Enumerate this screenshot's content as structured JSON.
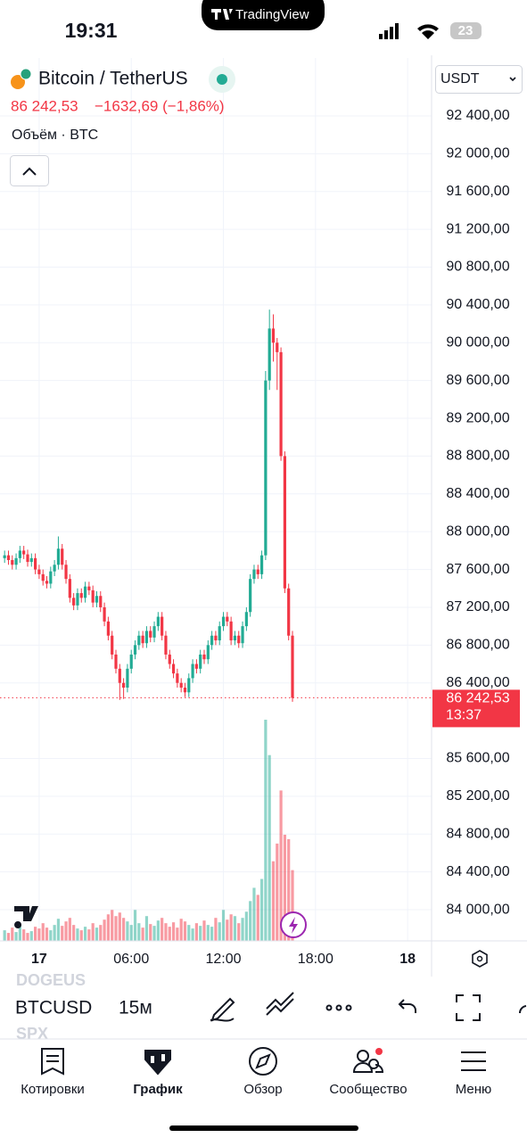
{
  "status_bar": {
    "time": "19:31",
    "app": "TradingView",
    "battery": "23"
  },
  "header": {
    "symbol": "Bitcoin / TetherUS",
    "price": "86 242,53",
    "change": "−1632,69 (−1,86%)",
    "volume_label": "Объём · BTC",
    "currency": "USDT"
  },
  "chart_data": {
    "type": "candlestick",
    "up_color": "#22ab94",
    "down_color": "#f23645",
    "x": [
      -2.25,
      -2,
      -1.75,
      -1.5,
      -1.25,
      -1,
      -0.75,
      -0.5,
      -0.25,
      0,
      0.25,
      0.5,
      0.75,
      1,
      1.25,
      1.5,
      1.75,
      2,
      2.25,
      2.5,
      2.75,
      3,
      3.25,
      3.5,
      3.75,
      4,
      4.25,
      4.5,
      4.75,
      5,
      5.25,
      5.5,
      5.75,
      6,
      6.25,
      6.5,
      6.75,
      7,
      7.25,
      7.5,
      7.75,
      8,
      8.25,
      8.5,
      8.75,
      9,
      9.25,
      9.5,
      9.75,
      10,
      10.25,
      10.5,
      10.75,
      11,
      11.25,
      11.5,
      11.75,
      12,
      12.25,
      12.5,
      12.75,
      13,
      13.25,
      13.5,
      13.75,
      14,
      14.25,
      14.5,
      14.75,
      15,
      15.25,
      15.5,
      15.75,
      16,
      16.25,
      16.5
    ],
    "open": [
      87720,
      87750,
      87700,
      87650,
      87720,
      87800,
      87760,
      87680,
      87720,
      87600,
      87550,
      87480,
      87450,
      87580,
      87650,
      87820,
      87650,
      87500,
      87300,
      87220,
      87350,
      87300,
      87420,
      87380,
      87250,
      87320,
      87200,
      87050,
      86900,
      86700,
      86550,
      86400,
      86350,
      86550,
      86700,
      86800,
      86900,
      86820,
      86950,
      86880,
      87000,
      87100,
      86900,
      86700,
      86600,
      86500,
      86400,
      86350,
      86300,
      86450,
      86600,
      86550,
      86700,
      86650,
      86800,
      86900,
      86850,
      87000,
      87100,
      87050,
      86850,
      86900,
      86820,
      87000,
      87150,
      87500,
      87600,
      87550,
      87750,
      89600,
      90150,
      90000,
      89900,
      88800,
      87400,
      86900
    ],
    "high": [
      87800,
      87800,
      87750,
      87770,
      87850,
      87850,
      87810,
      87770,
      87770,
      87650,
      87600,
      87530,
      87630,
      87700,
      87950,
      87870,
      87700,
      87550,
      87350,
      87400,
      87400,
      87470,
      87470,
      87430,
      87370,
      87370,
      87250,
      87100,
      86950,
      86750,
      86600,
      86450,
      86600,
      86750,
      86850,
      86950,
      86950,
      87000,
      87000,
      87050,
      87150,
      87150,
      86950,
      86750,
      86650,
      86550,
      86450,
      86400,
      86500,
      86650,
      86650,
      86750,
      86750,
      86850,
      86950,
      86950,
      87050,
      87150,
      87150,
      87100,
      86950,
      86950,
      87050,
      87200,
      87550,
      87650,
      87650,
      87800,
      89700,
      90350,
      90300,
      90050,
      89950,
      88850,
      87450,
      86950
    ],
    "low": [
      87670,
      87650,
      87600,
      87600,
      87670,
      87710,
      87630,
      87630,
      87550,
      87500,
      87430,
      87400,
      87400,
      87530,
      87600,
      87600,
      87450,
      87250,
      87170,
      87170,
      87250,
      87250,
      87330,
      87200,
      87200,
      87150,
      87000,
      86850,
      86650,
      86500,
      86220,
      86230,
      86300,
      86500,
      86650,
      86750,
      86770,
      86770,
      86830,
      86830,
      86950,
      86850,
      86650,
      86550,
      86450,
      86350,
      86300,
      86250,
      86250,
      86400,
      86500,
      86500,
      86600,
      86600,
      86750,
      86800,
      86800,
      86950,
      87000,
      86800,
      86800,
      86770,
      86770,
      86950,
      87100,
      87450,
      87500,
      87500,
      87700,
      89500,
      89800,
      89500,
      88750,
      87350,
      86850,
      86200
    ],
    "close": [
      87750,
      87700,
      87650,
      87720,
      87800,
      87760,
      87680,
      87720,
      87600,
      87550,
      87480,
      87450,
      87580,
      87650,
      87820,
      87650,
      87500,
      87300,
      87220,
      87350,
      87300,
      87420,
      87380,
      87250,
      87320,
      87200,
      87050,
      86900,
      86700,
      86550,
      86400,
      86350,
      86550,
      86700,
      86800,
      86900,
      86820,
      86950,
      86880,
      87000,
      87100,
      86900,
      86700,
      86600,
      86500,
      86400,
      86350,
      86300,
      86450,
      86600,
      86550,
      86700,
      86650,
      86800,
      86900,
      86850,
      87000,
      87100,
      87050,
      86850,
      86900,
      86820,
      87000,
      87150,
      87500,
      87600,
      87550,
      87750,
      89600,
      90150,
      90000,
      89900,
      88800,
      87400,
      86900,
      86242.53
    ],
    "volume": [
      120,
      90,
      150,
      100,
      180,
      130,
      90,
      110,
      160,
      140,
      200,
      150,
      120,
      180,
      250,
      170,
      220,
      260,
      180,
      140,
      120,
      160,
      130,
      200,
      150,
      180,
      240,
      300,
      350,
      280,
      320,
      260,
      220,
      180,
      350,
      200,
      150,
      280,
      190,
      170,
      230,
      260,
      200,
      160,
      210,
      150,
      250,
      220,
      180,
      140,
      200,
      170,
      230,
      180,
      160,
      260,
      210,
      350,
      240,
      300,
      280,
      200,
      260,
      330,
      450,
      600,
      520,
      700,
      2500,
      2100,
      900,
      1100,
      1700,
      1200,
      1150,
      800
    ],
    "xlim": [
      -2.55,
      25.56
    ],
    "xticks": [
      {
        "value": 0,
        "label": "17"
      },
      {
        "value": 6,
        "label": "06:00"
      },
      {
        "value": 12,
        "label": "12:00"
      },
      {
        "value": 18,
        "label": "18:00"
      },
      {
        "value": 24,
        "label": "18"
      }
    ],
    "ylim": [
      83670,
      93013
    ],
    "yticks": [
      {
        "value": 92400,
        "label": "92 400,00"
      },
      {
        "value": 92000,
        "label": "92 000,00"
      },
      {
        "value": 91600,
        "label": "91 600,00"
      },
      {
        "value": 91200,
        "label": "91 200,00"
      },
      {
        "value": 90800,
        "label": "90 800,00"
      },
      {
        "value": 90400,
        "label": "90 400,00"
      },
      {
        "value": 90000,
        "label": "90 000,00"
      },
      {
        "value": 89600,
        "label": "89 600,00"
      },
      {
        "value": 89200,
        "label": "89 200,00"
      },
      {
        "value": 88800,
        "label": "88 800,00"
      },
      {
        "value": 88400,
        "label": "88 400,00"
      },
      {
        "value": 88000,
        "label": "88 000,00"
      },
      {
        "value": 87600,
        "label": "87 600,00"
      },
      {
        "value": 87200,
        "label": "87 200,00"
      },
      {
        "value": 86800,
        "label": "86 800,00"
      },
      {
        "value": 86400,
        "label": "86 400,00"
      },
      {
        "value": 85600,
        "label": "85 600,00"
      },
      {
        "value": 85200,
        "label": "85 200,00"
      },
      {
        "value": 84800,
        "label": "84 800,00"
      },
      {
        "value": 84400,
        "label": "84 400,00"
      },
      {
        "value": 84000,
        "label": "84 000,00"
      }
    ],
    "grid": true,
    "last_price": {
      "value": 86242.53,
      "label": "86 242,53"
    },
    "countdown": "13:37"
  },
  "toolbar": {
    "prev_symbol": "DOGEUS",
    "symbol": "BTCUSD",
    "next_symbol": "SPX",
    "interval": "15м"
  },
  "nav": [
    "Котировки",
    "График",
    "Обзор",
    "Сообщество",
    "Меню"
  ]
}
